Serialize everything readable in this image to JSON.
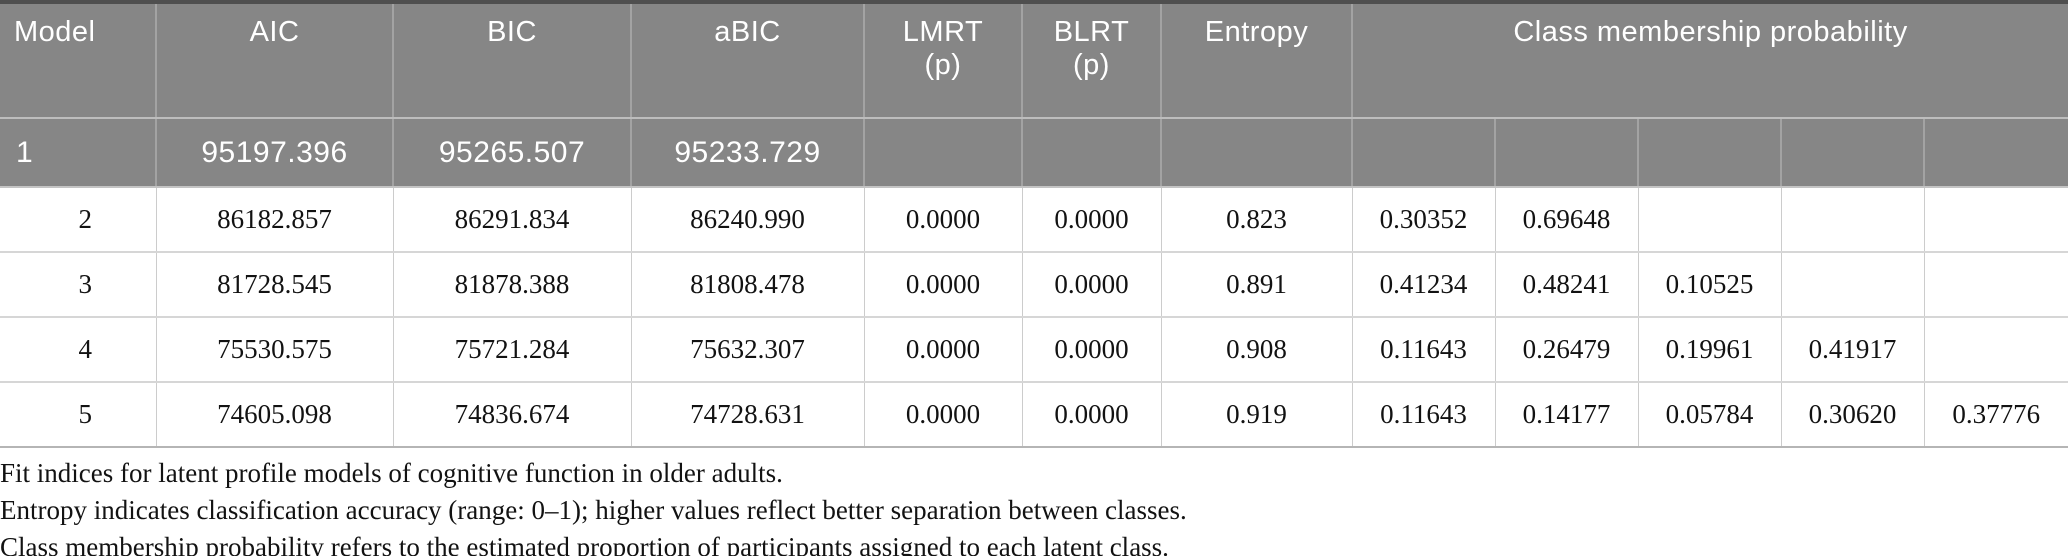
{
  "table": {
    "headers": {
      "model": "Model",
      "aic": "AIC",
      "bic": "BIC",
      "abic": "aBIC",
      "lmrt": "LMRT\n(p)",
      "blrt": "BLRT\n(p)",
      "entropy": "Entropy",
      "cmp": "Class membership probability"
    },
    "rows": [
      {
        "model": "1",
        "aic": "95197.396",
        "bic": "95265.507",
        "abic": "95233.729",
        "lmrt": "",
        "blrt": "",
        "entropy": "",
        "cmp": [
          "",
          "",
          "",
          "",
          ""
        ],
        "highlight": true
      },
      {
        "model": "2",
        "aic": "86182.857",
        "bic": "86291.834",
        "abic": "86240.990",
        "lmrt": "0.0000",
        "blrt": "0.0000",
        "entropy": "0.823",
        "cmp": [
          "0.30352",
          "0.69648",
          "",
          "",
          ""
        ],
        "highlight": false
      },
      {
        "model": "3",
        "aic": "81728.545",
        "bic": "81878.388",
        "abic": "81808.478",
        "lmrt": "0.0000",
        "blrt": "0.0000",
        "entropy": "0.891",
        "cmp": [
          "0.41234",
          "0.48241",
          "0.10525",
          "",
          ""
        ],
        "highlight": false
      },
      {
        "model": "4",
        "aic": "75530.575",
        "bic": "75721.284",
        "abic": "75632.307",
        "lmrt": "0.0000",
        "blrt": "0.0000",
        "entropy": "0.908",
        "cmp": [
          "0.11643",
          "0.26479",
          "0.19961",
          "0.41917",
          ""
        ],
        "highlight": false
      },
      {
        "model": "5",
        "aic": "74605.098",
        "bic": "74836.674",
        "abic": "74728.631",
        "lmrt": "0.0000",
        "blrt": "0.0000",
        "entropy": "0.919",
        "cmp": [
          "0.11643",
          "0.14177",
          "0.05784",
          "0.30620",
          "0.37776"
        ],
        "highlight": false
      }
    ]
  },
  "footnotes": [
    "Fit indices for latent profile models of cognitive function in older adults.",
    "Entropy indicates classification accuracy (range: 0–1); higher values reflect better separation between classes.",
    "Class membership probability refers to the estimated proportion of participants assigned to each latent class."
  ],
  "colors": {
    "header_background": "#868686",
    "header_text": "#ffffff",
    "gray_cell_divider": "#a3a3a3",
    "top_border": "#4f4f4f",
    "body_border": "#cccccc",
    "body_text": "#121212"
  }
}
